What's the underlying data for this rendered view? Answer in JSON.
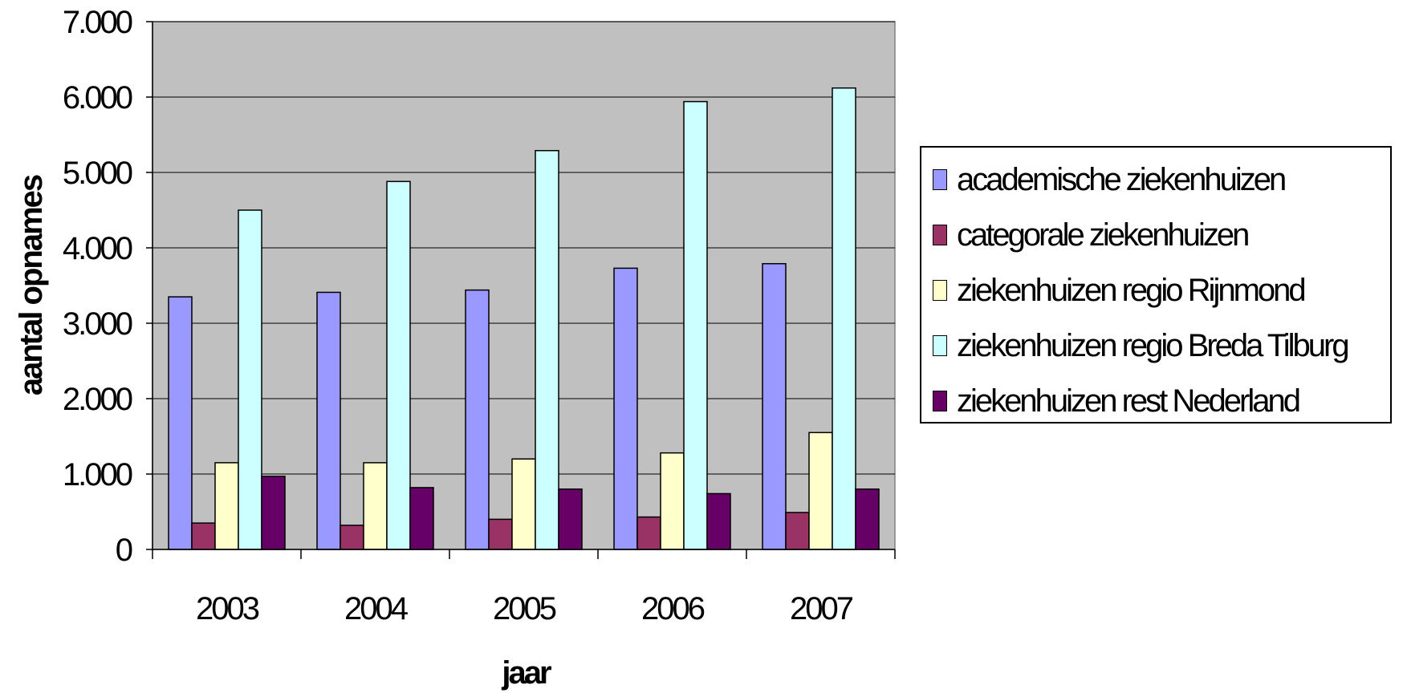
{
  "chart_data": {
    "type": "bar",
    "categories": [
      "2003",
      "2004",
      "2005",
      "2006",
      "2007"
    ],
    "series": [
      {
        "name": "academische ziekenhuizen",
        "color": "#9999ff",
        "values": [
          3350,
          3410,
          3440,
          3730,
          3790
        ]
      },
      {
        "name": "categorale ziekenhuizen",
        "color": "#993366",
        "values": [
          350,
          320,
          400,
          430,
          490
        ]
      },
      {
        "name": "ziekenhuizen regio Rijnmond",
        "color": "#ffffcc",
        "values": [
          1150,
          1150,
          1200,
          1280,
          1550
        ]
      },
      {
        "name": "ziekenhuizen regio Breda Tilburg",
        "color": "#ccffff",
        "values": [
          4500,
          4880,
          5290,
          5940,
          6120
        ]
      },
      {
        "name": "ziekenhuizen rest Nederland",
        "color": "#660066",
        "values": [
          970,
          820,
          800,
          740,
          800
        ]
      }
    ],
    "xlabel": "jaar",
    "ylabel": "aantal opnames",
    "ylim": [
      0,
      7000
    ],
    "yticks": [
      "0",
      "1.000",
      "2.000",
      "3.000",
      "4.000",
      "5.000",
      "6.000",
      "7.000"
    ],
    "grid": true,
    "plot_background": "#c0c0c0",
    "legend_position": "right"
  }
}
